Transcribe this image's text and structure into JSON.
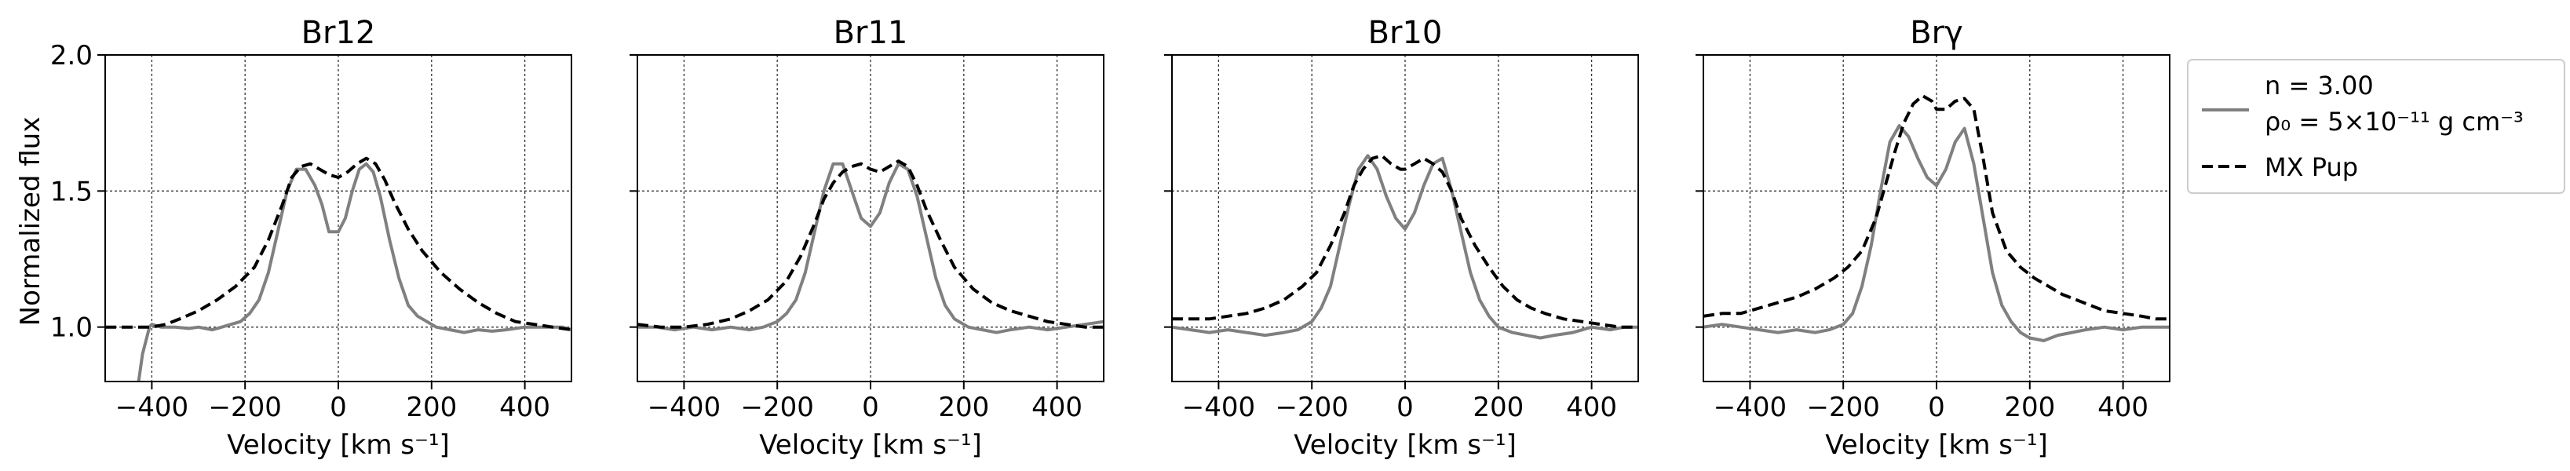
{
  "figure": {
    "ylabel": "Normalized flux"
  },
  "legend": {
    "model_line1": "n = 3.00",
    "model_line2": "ρ₀ = 5×10⁻¹¹ g cm⁻³",
    "observed_label": "MX Pup"
  },
  "chart_data": [
    {
      "type": "line",
      "title": "Br12",
      "xlabel": "Velocity [km s⁻¹]",
      "ylabel": "Normalized flux",
      "xlim": [
        -500,
        500
      ],
      "ylim": [
        0.8,
        2.0
      ],
      "xticks": [
        -400,
        -200,
        0,
        200,
        400
      ],
      "yticks": [
        1.0,
        1.5,
        2.0
      ],
      "grid": true,
      "series": [
        {
          "name": "Model (n=3.00, ρ0=5e-11 g cm^-3)",
          "color": "#808080",
          "style": "solid",
          "x": [
            -430,
            -420,
            -405,
            -400,
            -380,
            -350,
            -320,
            -300,
            -270,
            -250,
            -230,
            -210,
            -190,
            -170,
            -150,
            -130,
            -110,
            -90,
            -70,
            -50,
            -35,
            -20,
            0,
            15,
            30,
            45,
            60,
            75,
            90,
            110,
            130,
            150,
            170,
            190,
            210,
            240,
            270,
            300,
            330,
            360,
            400,
            440,
            480,
            500
          ],
          "y": [
            0.78,
            0.9,
            1.0,
            1.01,
            1.0,
            1.0,
            0.995,
            1.0,
            0.99,
            1.0,
            1.01,
            1.02,
            1.05,
            1.1,
            1.2,
            1.35,
            1.5,
            1.58,
            1.58,
            1.52,
            1.45,
            1.35,
            1.35,
            1.4,
            1.5,
            1.58,
            1.6,
            1.57,
            1.48,
            1.32,
            1.18,
            1.08,
            1.04,
            1.02,
            1.0,
            0.99,
            0.98,
            0.99,
            0.985,
            0.99,
            1.0,
            1.0,
            1.0,
            0.99
          ]
        },
        {
          "name": "MX Pup",
          "color": "#000000",
          "style": "dashed",
          "x": [
            -500,
            -450,
            -420,
            -400,
            -370,
            -340,
            -300,
            -260,
            -220,
            -180,
            -150,
            -120,
            -100,
            -80,
            -60,
            -40,
            -20,
            0,
            20,
            40,
            60,
            80,
            100,
            120,
            150,
            180,
            220,
            260,
            300,
            340,
            380,
            420,
            460,
            500
          ],
          "y": [
            1.0,
            1.0,
            1.0,
            1.0,
            1.01,
            1.03,
            1.06,
            1.1,
            1.15,
            1.22,
            1.32,
            1.45,
            1.55,
            1.59,
            1.6,
            1.58,
            1.56,
            1.55,
            1.57,
            1.6,
            1.62,
            1.6,
            1.54,
            1.46,
            1.36,
            1.28,
            1.2,
            1.14,
            1.09,
            1.05,
            1.02,
            1.01,
            1.0,
            0.99
          ]
        }
      ]
    },
    {
      "type": "line",
      "title": "Br11",
      "xlabel": "Velocity [km s⁻¹]",
      "ylabel": "",
      "xlim": [
        -500,
        500
      ],
      "ylim": [
        0.8,
        2.0
      ],
      "xticks": [
        -400,
        -200,
        0,
        200,
        400
      ],
      "yticks": [
        1.0,
        1.5,
        2.0
      ],
      "grid": true,
      "series": [
        {
          "name": "Model",
          "color": "#808080",
          "style": "solid",
          "x": [
            -500,
            -460,
            -420,
            -380,
            -340,
            -300,
            -260,
            -230,
            -200,
            -180,
            -160,
            -140,
            -120,
            -100,
            -80,
            -60,
            -40,
            -20,
            0,
            20,
            40,
            60,
            80,
            100,
            120,
            140,
            160,
            180,
            210,
            240,
            270,
            300,
            340,
            380,
            420,
            460,
            500
          ],
          "y": [
            1.0,
            1.0,
            0.99,
            1.0,
            0.99,
            1.0,
            0.99,
            1.0,
            1.02,
            1.05,
            1.1,
            1.2,
            1.35,
            1.5,
            1.6,
            1.6,
            1.5,
            1.4,
            1.37,
            1.42,
            1.53,
            1.6,
            1.58,
            1.48,
            1.33,
            1.18,
            1.08,
            1.03,
            1.0,
            0.99,
            0.98,
            0.99,
            1.0,
            0.99,
            1.0,
            1.01,
            1.02
          ]
        },
        {
          "name": "MX Pup",
          "color": "#000000",
          "style": "dashed",
          "x": [
            -500,
            -450,
            -400,
            -350,
            -300,
            -260,
            -220,
            -180,
            -150,
            -120,
            -100,
            -80,
            -60,
            -40,
            -20,
            0,
            20,
            40,
            60,
            80,
            100,
            120,
            150,
            180,
            220,
            260,
            300,
            340,
            380,
            420,
            460,
            500
          ],
          "y": [
            1.01,
            1.0,
            1.0,
            1.01,
            1.03,
            1.06,
            1.1,
            1.17,
            1.26,
            1.38,
            1.47,
            1.53,
            1.57,
            1.59,
            1.6,
            1.58,
            1.57,
            1.59,
            1.61,
            1.59,
            1.52,
            1.43,
            1.32,
            1.22,
            1.14,
            1.09,
            1.06,
            1.04,
            1.02,
            1.01,
            1.0,
            1.0
          ]
        }
      ]
    },
    {
      "type": "line",
      "title": "Br10",
      "xlabel": "Velocity [km s⁻¹]",
      "ylabel": "",
      "xlim": [
        -500,
        500
      ],
      "ylim": [
        0.8,
        2.0
      ],
      "xticks": [
        -400,
        -200,
        0,
        200,
        400
      ],
      "yticks": [
        1.0,
        1.5,
        2.0
      ],
      "grid": true,
      "series": [
        {
          "name": "Model",
          "color": "#808080",
          "style": "solid",
          "x": [
            -500,
            -460,
            -420,
            -380,
            -340,
            -300,
            -260,
            -230,
            -200,
            -180,
            -160,
            -140,
            -120,
            -100,
            -80,
            -60,
            -40,
            -20,
            0,
            20,
            40,
            60,
            80,
            100,
            120,
            140,
            160,
            180,
            200,
            230,
            260,
            290,
            320,
            360,
            400,
            440,
            470,
            500
          ],
          "y": [
            1.0,
            0.99,
            0.98,
            0.99,
            0.98,
            0.97,
            0.98,
            0.99,
            1.02,
            1.07,
            1.15,
            1.3,
            1.45,
            1.58,
            1.63,
            1.58,
            1.48,
            1.4,
            1.36,
            1.42,
            1.52,
            1.6,
            1.62,
            1.5,
            1.35,
            1.2,
            1.1,
            1.04,
            1.0,
            0.98,
            0.97,
            0.96,
            0.97,
            0.98,
            1.0,
            0.99,
            1.0,
            1.0
          ]
        },
        {
          "name": "MX Pup",
          "color": "#000000",
          "style": "dashed",
          "x": [
            -500,
            -460,
            -420,
            -380,
            -340,
            -300,
            -260,
            -220,
            -190,
            -160,
            -130,
            -110,
            -90,
            -70,
            -50,
            -30,
            -10,
            0,
            20,
            40,
            60,
            80,
            100,
            120,
            150,
            180,
            210,
            240,
            270,
            300,
            340,
            380,
            420,
            460,
            500
          ],
          "y": [
            1.03,
            1.03,
            1.03,
            1.04,
            1.05,
            1.07,
            1.1,
            1.15,
            1.2,
            1.3,
            1.42,
            1.52,
            1.58,
            1.62,
            1.63,
            1.6,
            1.58,
            1.58,
            1.6,
            1.62,
            1.6,
            1.57,
            1.5,
            1.4,
            1.3,
            1.22,
            1.15,
            1.1,
            1.07,
            1.05,
            1.03,
            1.02,
            1.01,
            1.0,
            1.0
          ]
        }
      ]
    },
    {
      "type": "line",
      "title": "Brγ",
      "xlabel": "Velocity [km s⁻¹]",
      "ylabel": "",
      "xlim": [
        -500,
        500
      ],
      "ylim": [
        0.8,
        2.0
      ],
      "xticks": [
        -400,
        -200,
        0,
        200,
        400
      ],
      "yticks": [
        1.0,
        1.5,
        2.0
      ],
      "grid": true,
      "series": [
        {
          "name": "Model",
          "color": "#808080",
          "style": "solid",
          "x": [
            -500,
            -460,
            -420,
            -380,
            -340,
            -300,
            -260,
            -230,
            -200,
            -180,
            -160,
            -140,
            -120,
            -100,
            -80,
            -60,
            -40,
            -20,
            0,
            20,
            40,
            60,
            80,
            100,
            120,
            140,
            160,
            180,
            200,
            230,
            260,
            290,
            320,
            360,
            400,
            440,
            480,
            500
          ],
          "y": [
            1.0,
            1.01,
            1.0,
            0.99,
            0.98,
            0.99,
            0.98,
            0.99,
            1.01,
            1.05,
            1.15,
            1.3,
            1.5,
            1.68,
            1.74,
            1.7,
            1.62,
            1.55,
            1.52,
            1.58,
            1.68,
            1.73,
            1.6,
            1.4,
            1.2,
            1.08,
            1.02,
            0.98,
            0.96,
            0.95,
            0.97,
            0.98,
            0.99,
            1.0,
            0.99,
            1.0,
            1.0,
            1.0
          ]
        },
        {
          "name": "MX Pup",
          "color": "#000000",
          "style": "dashed",
          "x": [
            -500,
            -460,
            -420,
            -380,
            -340,
            -300,
            -260,
            -220,
            -190,
            -160,
            -130,
            -110,
            -90,
            -70,
            -50,
            -30,
            -10,
            0,
            20,
            40,
            60,
            80,
            100,
            120,
            150,
            180,
            210,
            240,
            270,
            300,
            330,
            360,
            400,
            440,
            470,
            500
          ],
          "y": [
            1.04,
            1.05,
            1.05,
            1.07,
            1.09,
            1.11,
            1.14,
            1.18,
            1.22,
            1.28,
            1.4,
            1.52,
            1.64,
            1.75,
            1.82,
            1.85,
            1.83,
            1.8,
            1.8,
            1.83,
            1.84,
            1.8,
            1.62,
            1.42,
            1.28,
            1.22,
            1.18,
            1.15,
            1.12,
            1.1,
            1.08,
            1.06,
            1.05,
            1.04,
            1.03,
            1.03
          ]
        }
      ]
    }
  ]
}
